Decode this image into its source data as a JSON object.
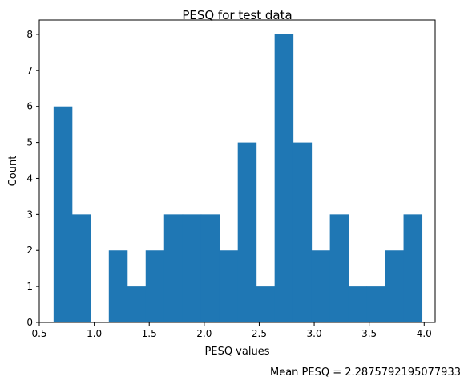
{
  "chart_data": {
    "type": "bar",
    "title": "PESQ for test data",
    "xlabel": "PESQ values",
    "ylabel": "Count",
    "annotation": "Mean PESQ = 2.2875792195077933",
    "xlim": [
      0.5,
      4.1
    ],
    "ylim": [
      0,
      8.4
    ],
    "xticks": [
      "0.5",
      "1.0",
      "1.5",
      "2.0",
      "2.5",
      "3.0",
      "3.5",
      "4.0"
    ],
    "xtick_values": [
      0.5,
      1.0,
      1.5,
      2.0,
      2.5,
      3.0,
      3.5,
      4.0
    ],
    "yticks": [
      "0",
      "1",
      "2",
      "3",
      "4",
      "5",
      "6",
      "7",
      "8"
    ],
    "ytick_values": [
      0,
      1,
      2,
      3,
      4,
      5,
      6,
      7,
      8
    ],
    "bins": {
      "edges": [
        0.63,
        0.7975,
        0.965,
        1.1325,
        1.3,
        1.4675,
        1.635,
        1.8025,
        1.97,
        2.1375,
        2.305,
        2.4725,
        2.64,
        2.8075,
        2.975,
        3.1425,
        3.31,
        3.4775,
        3.645,
        3.8125,
        3.98
      ],
      "counts": [
        6,
        3,
        0,
        2,
        1,
        2,
        3,
        3,
        3,
        2,
        5,
        1,
        8,
        5,
        2,
        3,
        1,
        1,
        2,
        3
      ]
    },
    "colors": {
      "bar": "#1f77b4"
    },
    "grid": false,
    "legend": "none"
  }
}
